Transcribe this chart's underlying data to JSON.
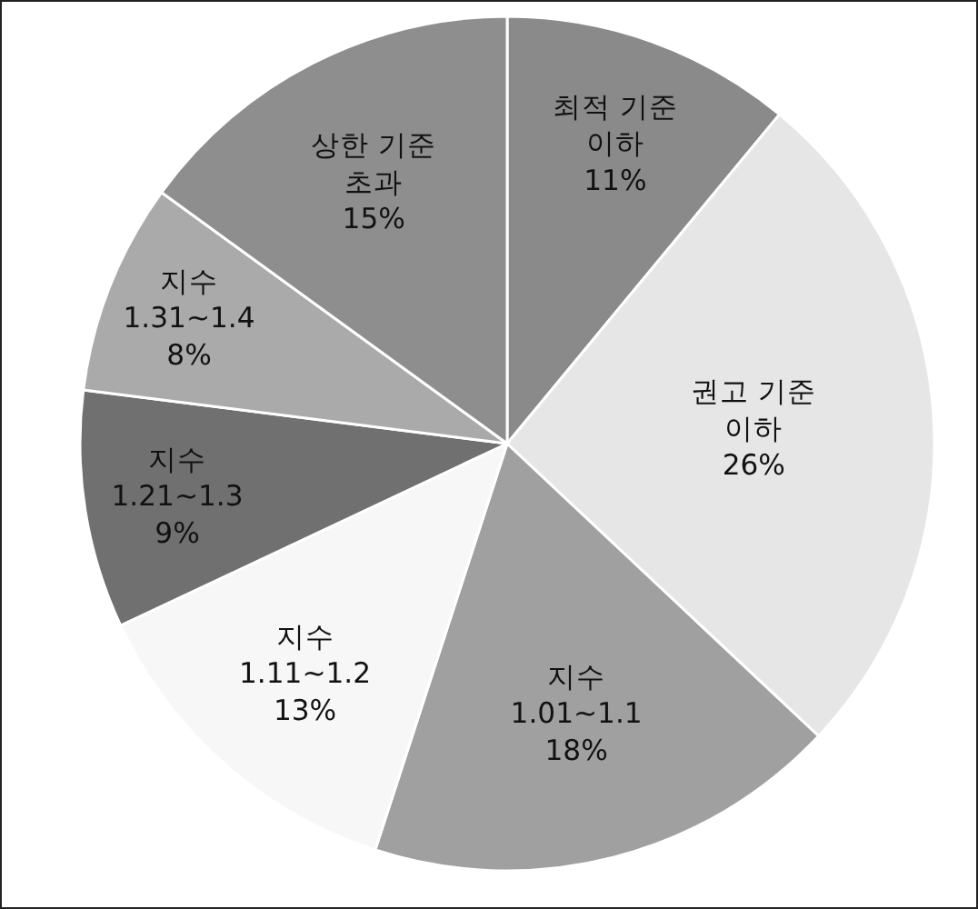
{
  "chart_data": {
    "type": "pie",
    "categories": [
      "최적 기준\n이하",
      "권고 기준\n이하",
      "지수\n1.01~1.1",
      "지수\n1.11~1.2",
      "지수\n1.21~1.3",
      "지수\n1.31~1.4",
      "상한 기준\n초과"
    ],
    "values": [
      11,
      26,
      18,
      13,
      9,
      8,
      15
    ],
    "value_labels": [
      "11%",
      "26%",
      "18%",
      "13%",
      "9%",
      "8%",
      "15%"
    ],
    "colors": [
      "#8a8a8a",
      "#e6e6e6",
      "#a0a0a0",
      "#f7f7f7",
      "#707070",
      "#aaaaaa",
      "#8e8e8e"
    ],
    "legend": false
  }
}
